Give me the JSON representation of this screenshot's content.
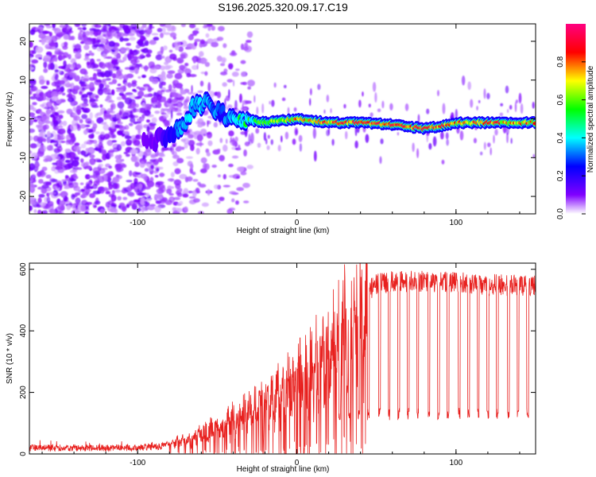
{
  "title": "S196.2025.320.09.17.C19",
  "chart_data": [
    {
      "type": "heatmap",
      "xlabel": "Height of straight line (km)",
      "ylabel": "Frequency (Hz)",
      "xlim": [
        -168,
        150
      ],
      "ylim": [
        -24.5,
        24.5
      ],
      "xticks": [
        -100,
        0,
        100
      ],
      "yticks": [
        -20,
        -10,
        0,
        10,
        20
      ],
      "colorbar": {
        "label": "Normalized spectral amplitude",
        "range": [
          0,
          1
        ],
        "ticks": [
          "0.0",
          "0.2",
          "0.4",
          "0.6",
          "0.8"
        ],
        "tick_values": [
          0,
          0.2,
          0.4,
          0.6,
          0.8
        ],
        "colors": [
          "#ffffff",
          "#8000ff",
          "#0000ff",
          "#00ffff",
          "#00ff00",
          "#ffff00",
          "#ff0000",
          "#ff0080"
        ]
      },
      "ridge": {
        "x": [
          -100,
          -90,
          -80,
          -72,
          -65,
          -55,
          -45,
          -35,
          -20,
          0,
          20,
          40,
          60,
          70,
          80,
          90,
          100,
          120,
          140,
          150
        ],
        "freq": [
          -7,
          -6,
          -4,
          -2,
          3,
          4,
          1,
          0,
          -1,
          0,
          -1,
          -1,
          -1.5,
          -2,
          -2.5,
          -2,
          -1,
          -1,
          -1,
          -1
        ],
        "peak": [
          0.08,
          0.12,
          0.22,
          0.35,
          0.4,
          0.38,
          0.32,
          0.5,
          0.6,
          0.8,
          0.9,
          0.95,
          0.95,
          0.95,
          0.97,
          0.9,
          0.8,
          0.9,
          0.85,
          0.8
        ]
      }
    },
    {
      "type": "line",
      "xlabel": "Height of straight line (km)",
      "ylabel": "SNR (10 * v/v)",
      "xlim": [
        -168,
        150
      ],
      "ylim": [
        0,
        620
      ],
      "xticks": [
        -100,
        0,
        100
      ],
      "yticks": [
        0,
        200,
        400,
        600
      ],
      "color": "#e8201e",
      "envelope": {
        "x": [
          -168,
          -100,
          -85,
          -70,
          -55,
          -40,
          -25,
          -10,
          0,
          10,
          20,
          25,
          30,
          35,
          40,
          45,
          50,
          60,
          80,
          100,
          120,
          150
        ],
        "snr": [
          20,
          20,
          25,
          50,
          80,
          120,
          160,
          220,
          260,
          300,
          360,
          400,
          440,
          470,
          510,
          530,
          550,
          560,
          560,
          560,
          550,
          545
        ]
      },
      "dropouts": [
        27,
        33,
        39,
        45,
        52,
        58,
        64,
        70,
        76,
        83,
        89,
        95,
        102,
        108,
        114,
        120,
        126,
        133,
        139,
        145
      ],
      "dropout_level": 130
    }
  ]
}
